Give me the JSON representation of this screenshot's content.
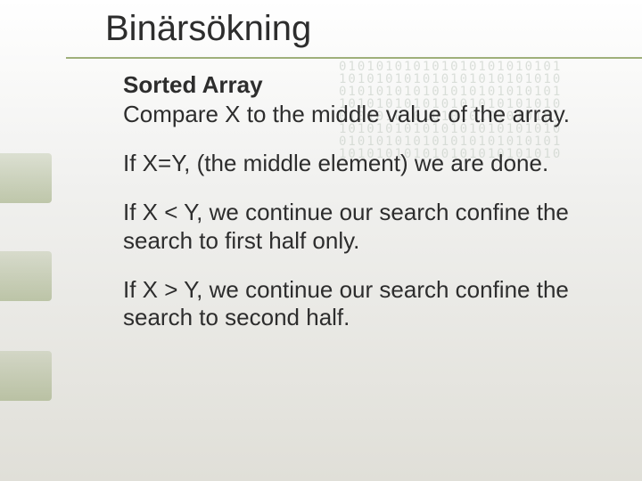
{
  "title": "Binärsökning",
  "subtitle": "Sorted Array",
  "paragraphs": [
    "Compare X to the middle value of the array.",
    "If X=Y, (the middle element) we are done.",
    "If X < Y, we continue our search confine the search to first half only.",
    "If X > Y, we continue our search confine the search to second half."
  ],
  "colors": {
    "accent": "#9fb07a",
    "text": "#2d2d2d",
    "bg_top": "#ffffff",
    "bg_bottom": "#e0dfd8",
    "binary_tint": "#c5cdc5"
  },
  "binary_pattern": "010101010101010101010101\n101010101010101010101010\n010101010101010101010101\n101010101010101010101010\n010101010101010101010101\n101010101010101010101010\n010101010101010101010101\n101010101010101010101010"
}
